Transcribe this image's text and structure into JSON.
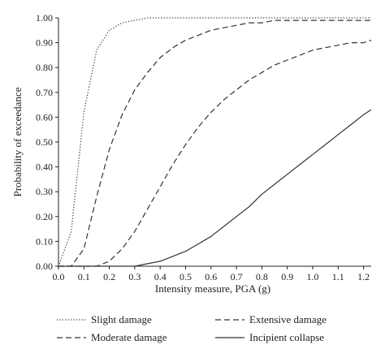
{
  "chart_data": {
    "type": "line",
    "title": "",
    "xlabel": "Intensity measure, PGA (g)",
    "ylabel": "Probability of exceedance",
    "xlim": [
      0,
      1.23
    ],
    "ylim": [
      0,
      1.0
    ],
    "xticks": [
      "0.0",
      "0.1",
      "0.2",
      "0.3",
      "0.4",
      "0.5",
      "0.6",
      "0.7",
      "0.8",
      "0.9",
      "1.0",
      "1.1",
      "1.2"
    ],
    "yticks": [
      "0.00",
      "0.10",
      "0.20",
      "0.30",
      "0.40",
      "0.50",
      "0.60",
      "0.70",
      "0.80",
      "0.90",
      "1.00"
    ],
    "grid": false,
    "legend_position": "bottom",
    "x": [
      0.0,
      0.05,
      0.1,
      0.15,
      0.2,
      0.25,
      0.3,
      0.35,
      0.4,
      0.45,
      0.5,
      0.55,
      0.6,
      0.65,
      0.7,
      0.75,
      0.8,
      0.85,
      0.9,
      0.95,
      1.0,
      1.05,
      1.1,
      1.15,
      1.2,
      1.23
    ],
    "series": [
      {
        "name": "Slight damage",
        "dash": "dotted",
        "values": [
          0.0,
          0.14,
          0.62,
          0.87,
          0.95,
          0.98,
          0.99,
          1.0,
          1.0,
          1.0,
          1.0,
          1.0,
          1.0,
          1.0,
          1.0,
          1.0,
          1.0,
          1.0,
          1.0,
          1.0,
          1.0,
          1.0,
          1.0,
          1.0,
          1.0,
          1.0
        ]
      },
      {
        "name": "Moderate damage",
        "dash": "dashed",
        "values": [
          0.0,
          0.0,
          0.07,
          0.28,
          0.47,
          0.61,
          0.71,
          0.78,
          0.84,
          0.88,
          0.91,
          0.93,
          0.95,
          0.96,
          0.97,
          0.98,
          0.98,
          0.99,
          0.99,
          0.99,
          0.99,
          0.99,
          0.99,
          0.99,
          0.99,
          0.99
        ]
      },
      {
        "name": "Extensive damage",
        "dash": "dashed",
        "values": [
          0.0,
          0.0,
          0.0,
          0.0,
          0.02,
          0.07,
          0.14,
          0.23,
          0.32,
          0.41,
          0.49,
          0.56,
          0.62,
          0.67,
          0.71,
          0.75,
          0.78,
          0.81,
          0.83,
          0.85,
          0.87,
          0.88,
          0.89,
          0.9,
          0.9,
          0.91
        ]
      },
      {
        "name": "Incipient collapse",
        "dash": "solid",
        "values": [
          0.0,
          0.0,
          0.0,
          0.0,
          0.0,
          0.0,
          0.0,
          0.01,
          0.02,
          0.04,
          0.06,
          0.09,
          0.12,
          0.16,
          0.2,
          0.24,
          0.29,
          0.33,
          0.37,
          0.41,
          0.45,
          0.49,
          0.53,
          0.57,
          0.61,
          0.63
        ]
      }
    ]
  }
}
